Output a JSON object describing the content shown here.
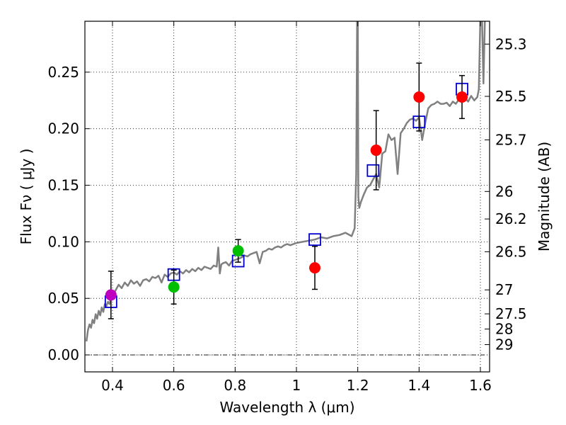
{
  "chart_data": {
    "type": "scatter",
    "title": "",
    "xlabel": "Wavelength  λ (μm)",
    "ylabel": "Flux  Fν  ( μJy )",
    "y2label": "Magnitude (AB)",
    "xlim": [
      0.31,
      1.63
    ],
    "ylim": [
      -0.015,
      0.295
    ],
    "xticks": [
      0.4,
      0.6,
      0.8,
      1.0,
      1.2,
      1.4,
      1.6
    ],
    "xtick_labels": [
      "0.4",
      "0.6",
      "0.8",
      "1",
      "1.2",
      "1.4",
      "1.6"
    ],
    "yticks": [
      0.0,
      0.05,
      0.1,
      0.15,
      0.2,
      0.25
    ],
    "ytick_labels": [
      "0.00",
      "0.05",
      "0.10",
      "0.15",
      "0.20",
      "0.25"
    ],
    "mag_ticks": [
      {
        "label": "25.3",
        "flux": 0.2748
      },
      {
        "label": "25.5",
        "flux": 0.2286
      },
      {
        "label": "25.7",
        "flux": 0.1901
      },
      {
        "label": "26",
        "flux": 0.1445
      },
      {
        "label": "26.2",
        "flux": 0.1202
      },
      {
        "label": "26.5",
        "flux": 0.0912
      },
      {
        "label": "27",
        "flux": 0.0575
      },
      {
        "label": "27.5",
        "flux": 0.0363
      },
      {
        "label": "28",
        "flux": 0.0229
      },
      {
        "label": "29",
        "flux": 0.0091
      }
    ],
    "grid": true,
    "model_spectrum": {
      "name": "SED model",
      "color": "#808080",
      "x": [
        0.315,
        0.32,
        0.325,
        0.33,
        0.335,
        0.34,
        0.345,
        0.35,
        0.355,
        0.36,
        0.365,
        0.37,
        0.375,
        0.38,
        0.385,
        0.39,
        0.395,
        0.4,
        0.41,
        0.42,
        0.43,
        0.44,
        0.45,
        0.46,
        0.47,
        0.48,
        0.49,
        0.5,
        0.51,
        0.52,
        0.53,
        0.54,
        0.55,
        0.56,
        0.57,
        0.58,
        0.59,
        0.6,
        0.61,
        0.62,
        0.63,
        0.64,
        0.65,
        0.66,
        0.67,
        0.68,
        0.69,
        0.7,
        0.71,
        0.72,
        0.73,
        0.74,
        0.745,
        0.75,
        0.755,
        0.76,
        0.77,
        0.78,
        0.79,
        0.8,
        0.81,
        0.82,
        0.83,
        0.84,
        0.85,
        0.86,
        0.87,
        0.88,
        0.89,
        0.9,
        0.91,
        0.92,
        0.93,
        0.94,
        0.95,
        0.96,
        0.97,
        0.98,
        0.99,
        1.0,
        1.02,
        1.04,
        1.06,
        1.08,
        1.1,
        1.12,
        1.14,
        1.16,
        1.18,
        1.19,
        1.195,
        1.198,
        1.2,
        1.202,
        1.205,
        1.21,
        1.22,
        1.23,
        1.24,
        1.25,
        1.26,
        1.27,
        1.28,
        1.29,
        1.3,
        1.31,
        1.32,
        1.33,
        1.34,
        1.35,
        1.36,
        1.37,
        1.38,
        1.39,
        1.4,
        1.41,
        1.42,
        1.43,
        1.44,
        1.45,
        1.46,
        1.47,
        1.48,
        1.49,
        1.5,
        1.51,
        1.52,
        1.53,
        1.54,
        1.55,
        1.56,
        1.57,
        1.58,
        1.59,
        1.595,
        1.6,
        1.605,
        1.61,
        1.615,
        1.62
      ],
      "y": [
        0.012,
        0.022,
        0.027,
        0.024,
        0.031,
        0.028,
        0.036,
        0.032,
        0.039,
        0.035,
        0.042,
        0.038,
        0.045,
        0.043,
        0.047,
        0.045,
        0.05,
        0.052,
        0.057,
        0.062,
        0.059,
        0.064,
        0.061,
        0.066,
        0.063,
        0.065,
        0.061,
        0.066,
        0.067,
        0.065,
        0.069,
        0.068,
        0.07,
        0.064,
        0.071,
        0.069,
        0.072,
        0.073,
        0.071,
        0.074,
        0.072,
        0.075,
        0.073,
        0.076,
        0.074,
        0.077,
        0.075,
        0.078,
        0.077,
        0.076,
        0.079,
        0.078,
        0.095,
        0.072,
        0.08,
        0.081,
        0.082,
        0.079,
        0.083,
        0.084,
        0.085,
        0.086,
        0.088,
        0.087,
        0.089,
        0.09,
        0.091,
        0.081,
        0.091,
        0.092,
        0.094,
        0.093,
        0.095,
        0.096,
        0.095,
        0.097,
        0.098,
        0.097,
        0.098,
        0.099,
        0.1,
        0.101,
        0.102,
        0.104,
        0.103,
        0.105,
        0.106,
        0.108,
        0.105,
        0.112,
        0.16,
        0.3,
        0.3,
        0.14,
        0.13,
        0.135,
        0.142,
        0.148,
        0.15,
        0.155,
        0.16,
        0.148,
        0.178,
        0.18,
        0.195,
        0.19,
        0.192,
        0.16,
        0.196,
        0.2,
        0.205,
        0.208,
        0.209,
        0.207,
        0.21,
        0.19,
        0.205,
        0.218,
        0.221,
        0.222,
        0.224,
        0.222,
        0.222,
        0.223,
        0.22,
        0.224,
        0.222,
        0.226,
        0.228,
        0.227,
        0.224,
        0.229,
        0.225,
        0.228,
        0.235,
        0.3,
        0.3,
        0.24,
        0.3,
        0.3
      ]
    },
    "series": [
      {
        "name": "model photometry",
        "marker": "square-open",
        "color": "#0000cc",
        "x": [
          0.395,
          0.6,
          0.81,
          1.06,
          1.25,
          1.4,
          1.54
        ],
        "y": [
          0.047,
          0.071,
          0.083,
          0.102,
          0.163,
          0.206,
          0.235
        ]
      },
      {
        "name": "violet point",
        "marker": "circle",
        "color": "#bf00bf",
        "x": [
          0.395
        ],
        "y": [
          0.053
        ],
        "yerr": [
          0.021
        ]
      },
      {
        "name": "green points",
        "marker": "circle",
        "color": "#00bf00",
        "x": [
          0.6,
          0.81
        ],
        "y": [
          0.06,
          0.092
        ],
        "yerr": [
          0.015,
          0.01
        ]
      },
      {
        "name": "red points",
        "marker": "circle",
        "color": "#ff0000",
        "x": [
          1.06,
          1.26,
          1.4,
          1.54
        ],
        "y": [
          0.077,
          0.181,
          0.228,
          0.228
        ],
        "yerr": [
          0.019,
          0.035,
          0.03,
          0.019
        ]
      }
    ]
  }
}
